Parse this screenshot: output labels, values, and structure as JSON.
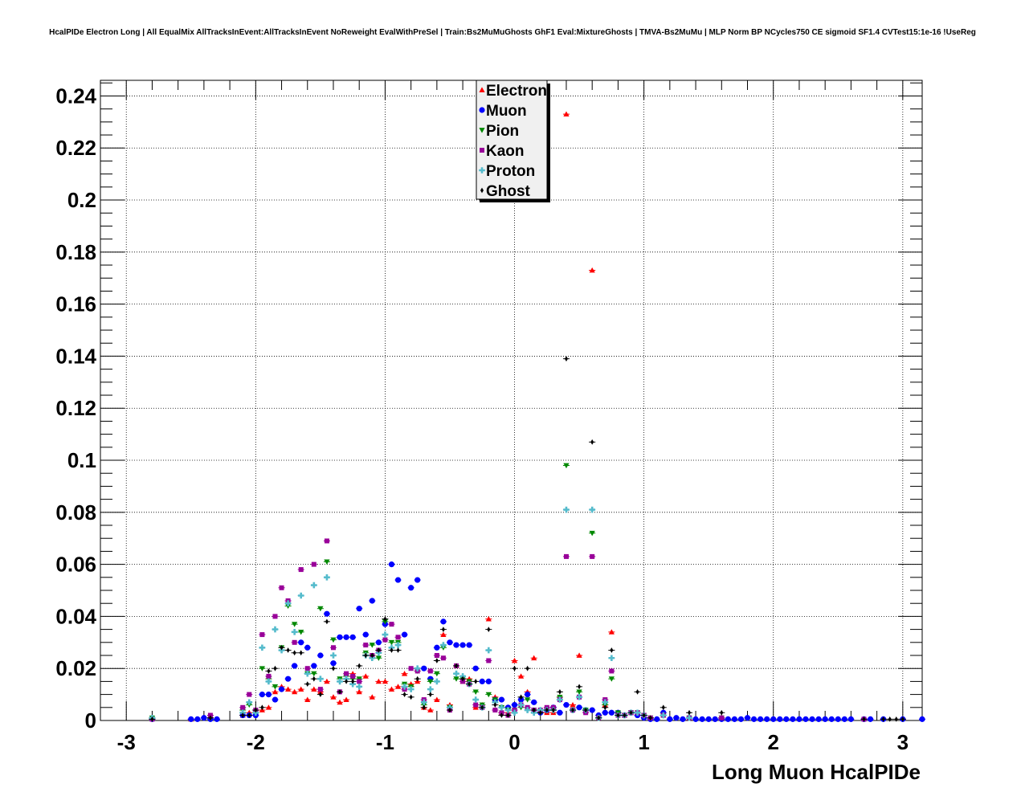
{
  "chart_data": {
    "type": "scatter",
    "title": "HcalPIDe Electron Long | All EqualMix AllTracksInEvent:AllTracksInEvent NoReweight EvalWithPreSel | Train:Bs2MuMuGhosts GhF1 Eval:MixtureGhosts | TMVA-Bs2MuMu | MLP Norm BP NCycles750 CE sigmoid SF1.4 CVTest15:1e-16 !UseReg",
    "xlabel": "Long Muon HcalPIDe",
    "ylabel": "",
    "xlim": [
      -3.2,
      3.15
    ],
    "ylim": [
      0,
      0.246
    ],
    "xticks": [
      -3,
      -2,
      -1,
      0,
      1,
      2,
      3
    ],
    "xtick_labels": [
      "-3",
      "-2",
      "-1",
      "0",
      "1",
      "2",
      "3"
    ],
    "yticks": [
      0,
      0.02,
      0.04,
      0.06,
      0.08,
      0.1,
      0.12,
      0.14,
      0.16,
      0.18,
      0.2,
      0.22,
      0.24
    ],
    "ytick_labels": [
      "0",
      "0.02",
      "0.04",
      "0.06",
      "0.08",
      "0.1",
      "0.12",
      "0.14",
      "0.16",
      "0.18",
      "0.2",
      "0.22",
      "0.24"
    ],
    "grid": true,
    "legend_position": "top-center",
    "series": [
      {
        "name": "Electron",
        "color": "#ff0000",
        "marker": "triangle-up",
        "x": [
          -2.8,
          -2.5,
          -2.35,
          -2.1,
          -2.05,
          -1.95,
          -1.9,
          -1.85,
          -1.8,
          -1.75,
          -1.7,
          -1.65,
          -1.6,
          -1.55,
          -1.5,
          -1.45,
          -1.4,
          -1.35,
          -1.3,
          -1.25,
          -1.2,
          -1.15,
          -1.1,
          -1.05,
          -1.0,
          -0.95,
          -0.9,
          -0.85,
          -0.8,
          -0.75,
          -0.7,
          -0.65,
          -0.6,
          -0.55,
          -0.5,
          -0.45,
          -0.4,
          -0.35,
          -0.3,
          -0.25,
          -0.2,
          -0.15,
          -0.1,
          -0.05,
          0.0,
          0.05,
          0.1,
          0.15,
          0.2,
          0.25,
          0.3,
          0.35,
          0.4,
          0.45,
          0.5,
          0.55,
          0.6,
          0.65,
          0.7,
          0.75,
          0.8,
          0.85,
          0.9,
          0.95,
          1.0,
          1.05,
          1.15,
          1.35,
          1.6
        ],
        "y": [
          0.001,
          0.0005,
          0.001,
          0.002,
          0.003,
          0.004,
          0.005,
          0.011,
          0.013,
          0.012,
          0.011,
          0.012,
          0.008,
          0.012,
          0.011,
          0.015,
          0.009,
          0.007,
          0.008,
          0.018,
          0.011,
          0.017,
          0.009,
          0.015,
          0.015,
          0.012,
          0.013,
          0.018,
          0.014,
          0.015,
          0.005,
          0.004,
          0.008,
          0.033,
          0.006,
          0.021,
          0.015,
          0.016,
          0.005,
          0.006,
          0.039,
          0.009,
          0.003,
          0.003,
          0.023,
          0.017,
          0.011,
          0.024,
          0.004,
          0.003,
          0.003,
          0.009,
          0.233,
          0.006,
          0.025,
          0.004,
          0.173,
          0.002,
          0.006,
          0.034,
          0.003,
          0.002,
          0.003,
          0.003,
          0.002,
          0.001,
          0.002,
          0.001,
          0.001
        ]
      },
      {
        "name": "Muon",
        "color": "#0000ff",
        "marker": "circle",
        "x": [
          -2.8,
          -2.5,
          -2.45,
          -2.4,
          -2.35,
          -2.3,
          -2.1,
          -2.05,
          -2.0,
          -1.95,
          -1.9,
          -1.85,
          -1.8,
          -1.75,
          -1.7,
          -1.65,
          -1.6,
          -1.55,
          -1.5,
          -1.45,
          -1.4,
          -1.35,
          -1.3,
          -1.25,
          -1.2,
          -1.15,
          -1.1,
          -1.05,
          -1.0,
          -0.95,
          -0.9,
          -0.85,
          -0.8,
          -0.75,
          -0.7,
          -0.65,
          -0.6,
          -0.55,
          -0.5,
          -0.45,
          -0.4,
          -0.35,
          -0.3,
          -0.25,
          -0.2,
          -0.15,
          -0.1,
          -0.05,
          0.0,
          0.05,
          0.1,
          0.15,
          0.2,
          0.25,
          0.3,
          0.35,
          0.4,
          0.45,
          0.5,
          0.55,
          0.6,
          0.65,
          0.7,
          0.75,
          0.8,
          0.85,
          0.9,
          0.95,
          1.0,
          1.05,
          1.1,
          1.15,
          1.2,
          1.25,
          1.3,
          1.35,
          1.4,
          1.45,
          1.5,
          1.55,
          1.6,
          1.65,
          1.7,
          1.75,
          1.8,
          1.85,
          1.9,
          1.95,
          2.0,
          2.05,
          2.1,
          2.15,
          2.2,
          2.25,
          2.3,
          2.35,
          2.4,
          2.45,
          2.5,
          2.55,
          2.6,
          2.7,
          2.75,
          2.85,
          3.0,
          3.15
        ],
        "y": [
          0.0005,
          0.0005,
          0.0005,
          0.001,
          0.0005,
          0.0005,
          0.002,
          0.002,
          0.002,
          0.01,
          0.01,
          0.008,
          0.012,
          0.016,
          0.021,
          0.03,
          0.028,
          0.021,
          0.025,
          0.041,
          0.022,
          0.032,
          0.032,
          0.032,
          0.043,
          0.033,
          0.046,
          0.03,
          0.037,
          0.06,
          0.054,
          0.033,
          0.051,
          0.054,
          0.02,
          0.016,
          0.028,
          0.038,
          0.03,
          0.029,
          0.029,
          0.029,
          0.02,
          0.015,
          0.015,
          0.008,
          0.008,
          0.005,
          0.006,
          0.008,
          0.01,
          0.007,
          0.003,
          0.004,
          0.005,
          0.003,
          0.006,
          0.004,
          0.005,
          0.004,
          0.004,
          0.002,
          0.003,
          0.003,
          0.003,
          0.002,
          0.003,
          0.002,
          0.001,
          0.0005,
          0.0005,
          0.003,
          0.0005,
          0.001,
          0.0005,
          0.001,
          0.0005,
          0.0005,
          0.0005,
          0.0005,
          0.0005,
          0.0005,
          0.0005,
          0.0005,
          0.001,
          0.0005,
          0.0005,
          0.0005,
          0.0005,
          0.0005,
          0.0005,
          0.0005,
          0.0005,
          0.0005,
          0.0005,
          0.0005,
          0.0005,
          0.0005,
          0.0005,
          0.0005,
          0.0005,
          0.0005,
          0.0005,
          0.0005,
          0.0005,
          0.0005
        ]
      },
      {
        "name": "Pion",
        "color": "#008800",
        "marker": "triangle-down",
        "x": [
          -2.8,
          -2.35,
          -2.1,
          -2.05,
          -2.0,
          -1.95,
          -1.9,
          -1.85,
          -1.8,
          -1.75,
          -1.7,
          -1.65,
          -1.6,
          -1.55,
          -1.5,
          -1.45,
          -1.4,
          -1.35,
          -1.3,
          -1.25,
          -1.2,
          -1.15,
          -1.1,
          -1.05,
          -1.0,
          -0.95,
          -0.9,
          -0.85,
          -0.8,
          -0.75,
          -0.7,
          -0.65,
          -0.6,
          -0.55,
          -0.5,
          -0.45,
          -0.4,
          -0.35,
          -0.3,
          -0.25,
          -0.2,
          -0.15,
          -0.1,
          -0.05,
          0.0,
          0.05,
          0.1,
          0.15,
          0.2,
          0.25,
          0.3,
          0.35,
          0.4,
          0.45,
          0.5,
          0.55,
          0.6,
          0.65,
          0.7,
          0.75,
          0.8,
          0.85,
          0.9,
          0.95,
          1.0,
          1.05,
          1.15,
          1.35,
          1.6
        ],
        "y": [
          0.001,
          0.001,
          0.004,
          0.006,
          0.003,
          0.02,
          0.016,
          0.013,
          0.028,
          0.044,
          0.037,
          0.034,
          0.018,
          0.018,
          0.043,
          0.061,
          0.031,
          0.016,
          0.017,
          0.016,
          0.016,
          0.026,
          0.029,
          0.024,
          0.038,
          0.03,
          0.03,
          0.014,
          0.013,
          0.019,
          0.006,
          0.015,
          0.018,
          0.028,
          0.005,
          0.016,
          0.016,
          0.015,
          0.011,
          0.006,
          0.01,
          0.008,
          0.005,
          0.004,
          0.004,
          0.005,
          0.008,
          0.004,
          0.003,
          0.004,
          0.004,
          0.009,
          0.098,
          0.004,
          0.011,
          0.004,
          0.072,
          0.001,
          0.006,
          0.016,
          0.003,
          0.002,
          0.003,
          0.003,
          0.002,
          0.001,
          0.002,
          0.001,
          0.001
        ]
      },
      {
        "name": "Kaon",
        "color": "#990099",
        "marker": "square",
        "x": [
          -2.8,
          -2.35,
          -2.1,
          -2.05,
          -2.0,
          -1.95,
          -1.9,
          -1.85,
          -1.8,
          -1.75,
          -1.7,
          -1.65,
          -1.6,
          -1.55,
          -1.5,
          -1.45,
          -1.4,
          -1.35,
          -1.3,
          -1.25,
          -1.2,
          -1.15,
          -1.1,
          -1.05,
          -1.0,
          -0.95,
          -0.9,
          -0.85,
          -0.8,
          -0.75,
          -0.7,
          -0.65,
          -0.6,
          -0.55,
          -0.5,
          -0.45,
          -0.4,
          -0.35,
          -0.3,
          -0.25,
          -0.2,
          -0.15,
          -0.1,
          -0.05,
          0.0,
          0.05,
          0.1,
          0.15,
          0.2,
          0.25,
          0.3,
          0.35,
          0.4,
          0.45,
          0.5,
          0.55,
          0.6,
          0.65,
          0.7,
          0.75,
          0.8,
          0.85,
          0.9,
          0.95,
          1.0,
          1.05,
          1.15,
          1.35,
          1.6,
          2.7
        ],
        "y": [
          0.0005,
          0.002,
          0.005,
          0.01,
          0.004,
          0.033,
          0.017,
          0.04,
          0.051,
          0.046,
          0.03,
          0.058,
          0.02,
          0.06,
          0.012,
          0.069,
          0.028,
          0.011,
          0.018,
          0.017,
          0.015,
          0.029,
          0.025,
          0.027,
          0.031,
          0.037,
          0.032,
          0.012,
          0.02,
          0.019,
          0.008,
          0.019,
          0.025,
          0.024,
          0.004,
          0.021,
          0.015,
          0.014,
          0.006,
          0.005,
          0.023,
          0.004,
          0.003,
          0.002,
          0.004,
          0.006,
          0.005,
          0.004,
          0.004,
          0.005,
          0.005,
          0.008,
          0.063,
          0.004,
          0.009,
          0.003,
          0.063,
          0.001,
          0.008,
          0.019,
          0.002,
          0.002,
          0.003,
          0.003,
          0.002,
          0.001,
          0.002,
          0.001,
          0.001,
          0.0005
        ]
      },
      {
        "name": "Proton",
        "color": "#55bbcc",
        "marker": "cross",
        "x": [
          -2.8,
          -2.1,
          -2.05,
          -2.0,
          -1.95,
          -1.9,
          -1.85,
          -1.8,
          -1.75,
          -1.7,
          -1.65,
          -1.6,
          -1.55,
          -1.5,
          -1.45,
          -1.4,
          -1.35,
          -1.3,
          -1.25,
          -1.2,
          -1.15,
          -1.1,
          -1.05,
          -1.0,
          -0.95,
          -0.9,
          -0.85,
          -0.8,
          -0.75,
          -0.7,
          -0.65,
          -0.6,
          -0.55,
          -0.5,
          -0.45,
          -0.4,
          -0.35,
          -0.3,
          -0.25,
          -0.2,
          -0.15,
          -0.1,
          -0.05,
          0.0,
          0.05,
          0.1,
          0.15,
          0.2,
          0.25,
          0.3,
          0.35,
          0.4,
          0.45,
          0.5,
          0.55,
          0.6,
          0.65,
          0.7,
          0.75,
          0.8,
          0.85,
          0.9,
          0.95,
          1.0,
          1.15,
          1.35
        ],
        "y": [
          0.001,
          0.003,
          0.007,
          0.003,
          0.028,
          0.015,
          0.035,
          0.027,
          0.045,
          0.034,
          0.048,
          0.018,
          0.052,
          0.016,
          0.055,
          0.025,
          0.015,
          0.016,
          0.014,
          0.013,
          0.025,
          0.024,
          0.026,
          0.033,
          0.028,
          0.029,
          0.013,
          0.012,
          0.02,
          0.007,
          0.012,
          0.015,
          0.029,
          0.005,
          0.018,
          0.017,
          0.014,
          0.008,
          0.005,
          0.027,
          0.007,
          0.005,
          0.004,
          0.003,
          0.006,
          0.004,
          0.003,
          0.004,
          0.004,
          0.004,
          0.008,
          0.081,
          0.004,
          0.009,
          0.004,
          0.081,
          0.001,
          0.007,
          0.024,
          0.002,
          0.002,
          0.003,
          0.003,
          0.002,
          0.002,
          0.001
        ]
      },
      {
        "name": "Ghost",
        "color": "#000000",
        "marker": "diamond",
        "x": [
          -2.8,
          -2.35,
          -2.1,
          -2.05,
          -2.0,
          -1.95,
          -1.9,
          -1.85,
          -1.8,
          -1.75,
          -1.7,
          -1.65,
          -1.6,
          -1.55,
          -1.5,
          -1.45,
          -1.4,
          -1.35,
          -1.3,
          -1.25,
          -1.2,
          -1.15,
          -1.1,
          -1.05,
          -1.0,
          -0.95,
          -0.9,
          -0.85,
          -0.8,
          -0.75,
          -0.7,
          -0.65,
          -0.6,
          -0.55,
          -0.5,
          -0.45,
          -0.4,
          -0.35,
          -0.3,
          -0.25,
          -0.2,
          -0.15,
          -0.1,
          -0.05,
          0.0,
          0.05,
          0.1,
          0.15,
          0.2,
          0.25,
          0.3,
          0.35,
          0.4,
          0.45,
          0.5,
          0.55,
          0.6,
          0.65,
          0.7,
          0.75,
          0.8,
          0.85,
          0.9,
          0.95,
          1.0,
          1.05,
          1.15,
          1.35,
          1.6,
          2.7,
          2.85,
          2.9,
          2.95,
          3.0
        ],
        "y": [
          0.0005,
          0.001,
          0.002,
          0.002,
          0.004,
          0.005,
          0.019,
          0.02,
          0.028,
          0.027,
          0.026,
          0.026,
          0.014,
          0.016,
          0.01,
          0.038,
          0.02,
          0.011,
          0.015,
          0.015,
          0.021,
          0.025,
          0.025,
          0.027,
          0.039,
          0.027,
          0.027,
          0.01,
          0.009,
          0.016,
          0.005,
          0.01,
          0.023,
          0.035,
          0.004,
          0.021,
          0.016,
          0.014,
          0.015,
          0.005,
          0.035,
          0.006,
          0.002,
          0.002,
          0.02,
          0.009,
          0.02,
          0.004,
          0.003,
          0.004,
          0.004,
          0.011,
          0.139,
          0.004,
          0.013,
          0.004,
          0.107,
          0.001,
          0.005,
          0.027,
          0.002,
          0.002,
          0.003,
          0.011,
          0.002,
          0.001,
          0.005,
          0.003,
          0.003,
          0.0005,
          0.0005,
          0.0005,
          0.0005,
          0.0005
        ]
      }
    ]
  }
}
